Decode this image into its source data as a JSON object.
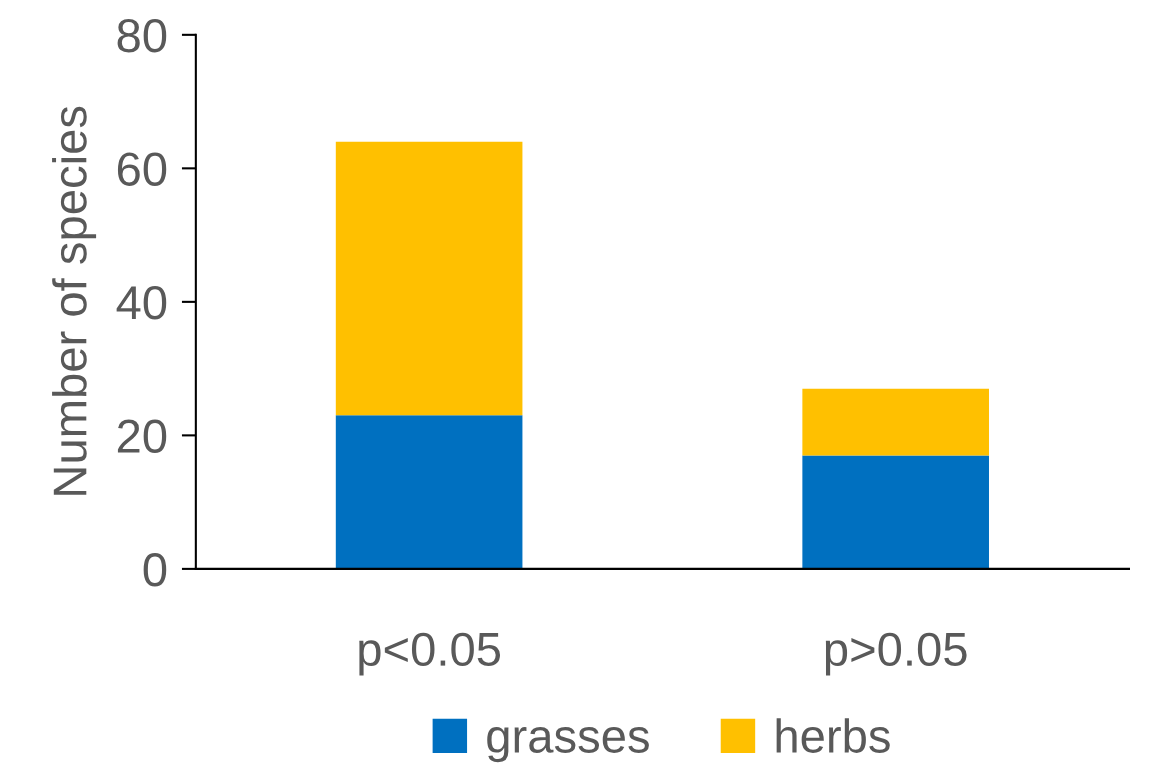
{
  "chart_data": {
    "type": "bar",
    "stacked": true,
    "ylabel": "Number of species",
    "categories": [
      "p<0.05",
      "p>0.05"
    ],
    "series": [
      {
        "name": "grasses",
        "color": "#0070c0",
        "values": [
          23,
          17
        ]
      },
      {
        "name": "herbs",
        "color": "#ffc000",
        "values": [
          41,
          10
        ]
      }
    ],
    "ylim": [
      0,
      80
    ],
    "yticks": [
      0,
      20,
      40,
      60,
      80
    ],
    "grid": false,
    "legend": "bottom"
  }
}
